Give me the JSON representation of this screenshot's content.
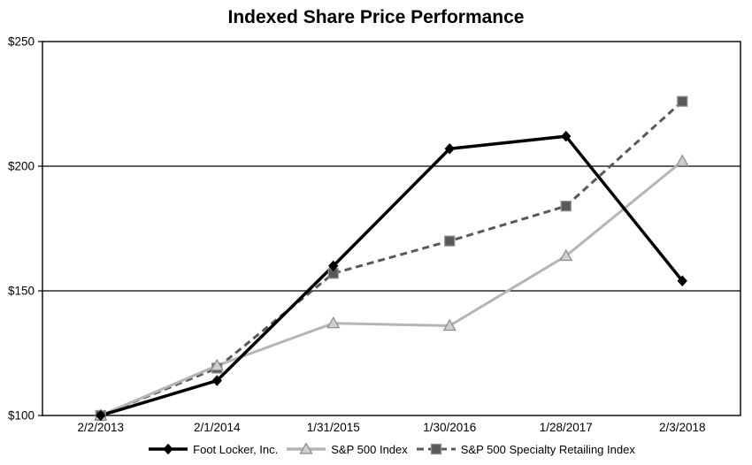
{
  "title": "Indexed Share Price Performance",
  "chart_data": {
    "type": "line",
    "title": "Indexed Share Price Performance",
    "categories": [
      "2/2/2013",
      "2/1/2014",
      "1/31/2015",
      "1/30/2016",
      "1/28/2017",
      "2/3/2018"
    ],
    "series": [
      {
        "name": "Foot Locker, Inc.",
        "values": [
          100,
          114,
          160,
          207,
          212,
          154
        ],
        "color": "#000000",
        "line_style": "solid",
        "marker": "diamond",
        "marker_fill": "#000000",
        "marker_stroke": "#000000"
      },
      {
        "name": "S&P 500 Index",
        "values": [
          100,
          120,
          137,
          136,
          164,
          202
        ],
        "color": "#b5b5b5",
        "line_style": "solid",
        "marker": "triangle",
        "marker_fill": "#cfcfcf",
        "marker_stroke": "#8f8f8f"
      },
      {
        "name": "S&P 500 Specialty Retailing Index",
        "values": [
          100,
          119,
          157,
          170,
          184,
          226
        ],
        "color": "#595959",
        "line_style": "dashed",
        "marker": "square",
        "marker_fill": "#595959",
        "marker_stroke": "#8f8f8f"
      }
    ],
    "ylim": [
      100,
      250
    ],
    "yticks": [
      {
        "value": 100,
        "label": "$100"
      },
      {
        "value": 150,
        "label": "$150"
      },
      {
        "value": 200,
        "label": "$200"
      },
      {
        "value": 250,
        "label": "$250"
      }
    ],
    "xlabel": "",
    "ylabel": "",
    "grid": true,
    "legend_position": "bottom",
    "axis_color": "#000000",
    "background": "#ffffff"
  }
}
